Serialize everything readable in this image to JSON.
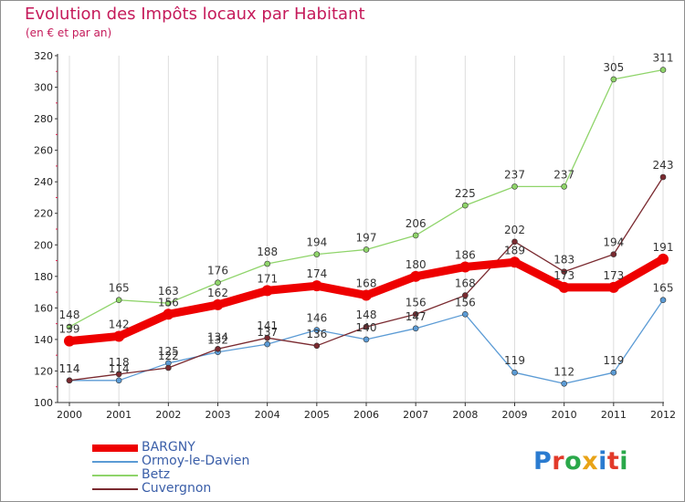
{
  "header": {
    "title": "Evolution des Impôts locaux par Habitant",
    "subtitle": "(en € et par an)"
  },
  "colors": {
    "title": "#c51a5a",
    "legend_text": "#3a5ea8",
    "axis": "#333333",
    "grid": "#dddddd",
    "tick_marks_y": "#e0204e"
  },
  "brand": {
    "text": "Proxiti",
    "letter_colors": [
      "#2a7bd0",
      "#e23a2a",
      "#2aa84a",
      "#e8a317",
      "#2a7bd0",
      "#e23a2a",
      "#2aa84a"
    ]
  },
  "chart_data": {
    "type": "line",
    "title": "Evolution des Impôts locaux par Habitant",
    "subtitle": "(en € et par an)",
    "x": [
      2000,
      2001,
      2002,
      2003,
      2004,
      2005,
      2006,
      2007,
      2008,
      2009,
      2010,
      2011,
      2012
    ],
    "ylim": [
      100,
      320
    ],
    "yticks": [
      100,
      120,
      140,
      160,
      180,
      200,
      220,
      240,
      260,
      280,
      300,
      320
    ],
    "grid": "vertical",
    "legend_position": "bottom-left",
    "series": [
      {
        "name": "BARGNY",
        "color": "#ee0000",
        "width": "thick",
        "values": [
          139,
          142,
          156,
          162,
          171,
          174,
          168,
          180,
          186,
          189,
          173,
          173,
          191
        ],
        "labels": [
          "139",
          "142",
          "156",
          "162",
          "171",
          "174",
          "168",
          "180",
          "186",
          "189",
          "173",
          "173",
          "191"
        ]
      },
      {
        "name": "Ormoy-le-Davien",
        "color": "#5b9bd5",
        "width": "thin",
        "values": [
          114,
          114,
          125,
          132,
          137,
          146,
          140,
          147,
          156,
          119,
          112,
          119,
          165
        ],
        "labels": [
          "114",
          "114",
          "125",
          "132",
          "137",
          "146",
          "140",
          "147",
          "156",
          "119",
          "112",
          "119",
          "165"
        ]
      },
      {
        "name": "Betz",
        "color": "#8fd46a",
        "width": "thin",
        "values": [
          148,
          165,
          163,
          176,
          188,
          194,
          197,
          206,
          225,
          237,
          237,
          305,
          311
        ],
        "labels": [
          "148",
          "165",
          "163",
          "176",
          "188",
          "194",
          "197",
          "206",
          "225",
          "237",
          "237",
          "305",
          "311"
        ]
      },
      {
        "name": "Cuvergnon",
        "color": "#7a2a30",
        "width": "thin",
        "values": [
          114,
          118,
          122,
          134,
          141,
          136,
          148,
          156,
          168,
          202,
          183,
          194,
          243
        ],
        "labels": [
          "114",
          "118",
          "122",
          "134",
          "141",
          "136",
          "148",
          "156",
          "168",
          "202",
          "183",
          "194",
          "243"
        ]
      }
    ]
  }
}
